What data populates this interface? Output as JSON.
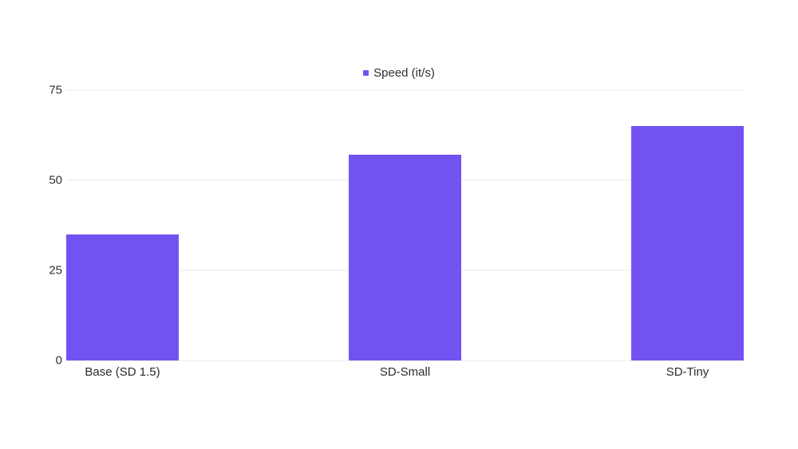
{
  "chart": {
    "legend": {
      "label": "Speed (it/s)"
    },
    "colors": {
      "bar": "#7253F2",
      "gridline": "#E9E9E9",
      "text": "#333333",
      "background": "#FFFFFF"
    }
  },
  "chart_data": {
    "type": "bar",
    "categories": [
      "Base (SD 1.5)",
      "SD-Small",
      "SD-Tiny"
    ],
    "values": [
      35,
      57,
      65
    ],
    "series": [
      {
        "name": "Speed (it/s)",
        "values": [
          35,
          57,
          65
        ]
      }
    ],
    "title": "",
    "xlabel": "",
    "ylabel": "",
    "ylim": [
      0,
      75
    ],
    "yticks": [
      0,
      25,
      50,
      75
    ],
    "grid": true,
    "legend_position": "top-center",
    "bar_color": "#7253F2"
  }
}
